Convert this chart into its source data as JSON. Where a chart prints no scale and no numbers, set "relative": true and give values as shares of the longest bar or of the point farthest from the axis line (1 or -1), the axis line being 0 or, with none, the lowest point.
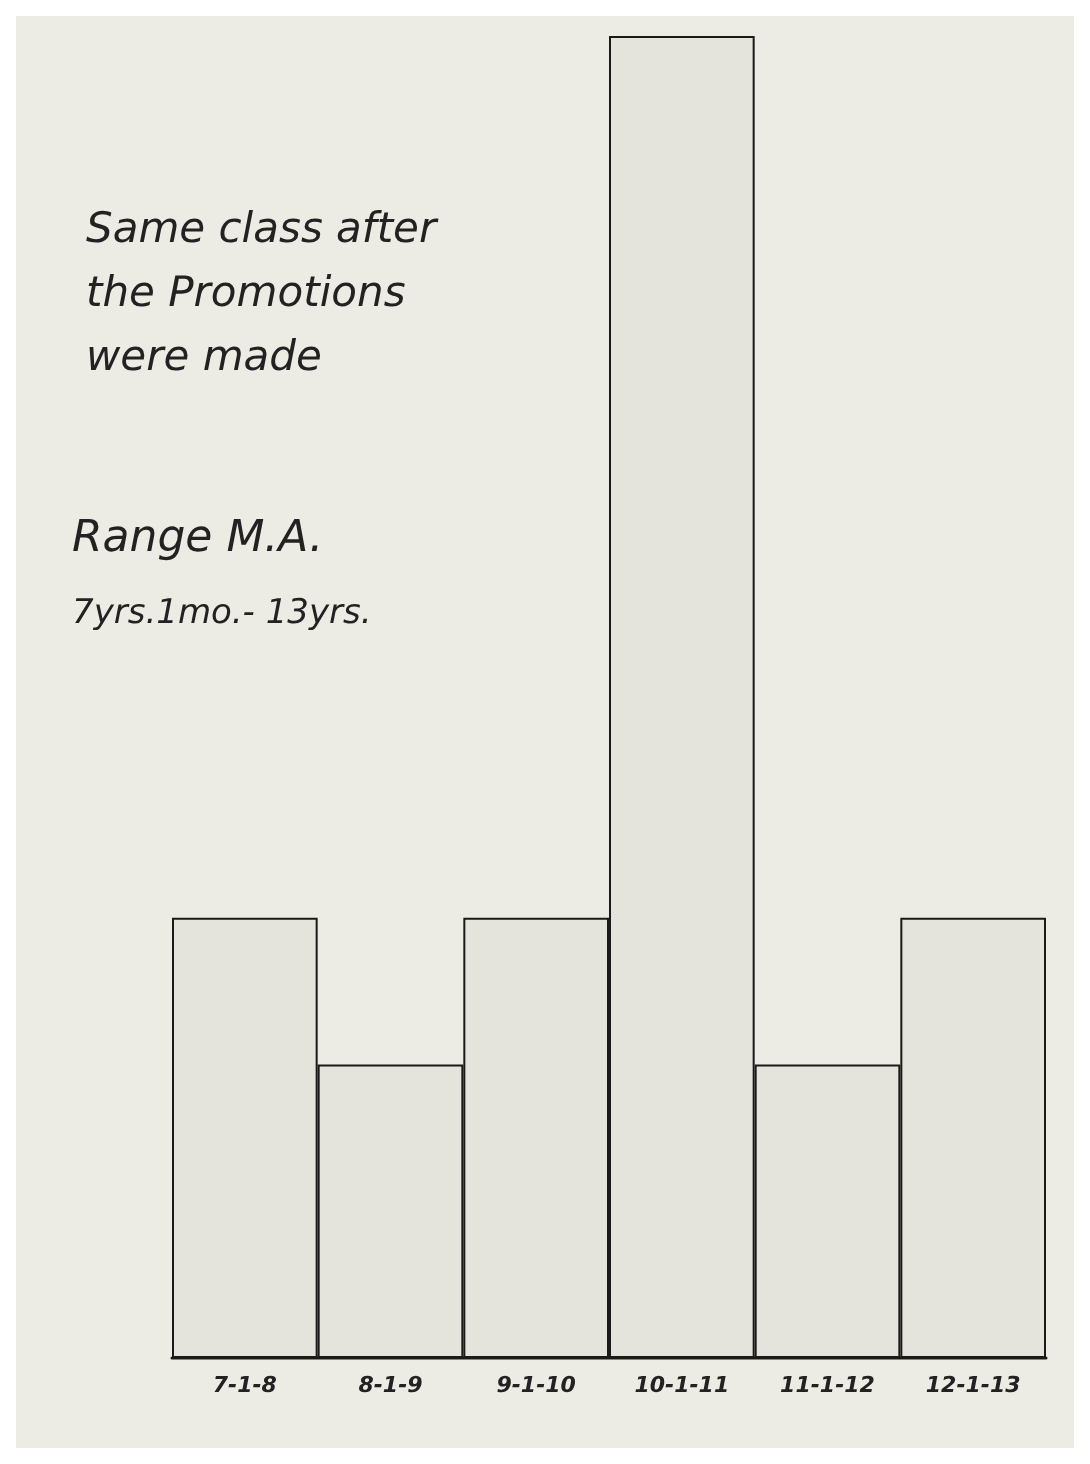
{
  "chart_data": {
    "type": "bar",
    "relative": true,
    "title": "Same class after the Promotions were made",
    "annotations": [
      "Range M.A.",
      "7yrs.1mo.- 13yrs."
    ],
    "categories": [
      "7-1-8",
      "8-1-9",
      "9-1-10",
      "10-1-11",
      "11-1-12",
      "12-1-13"
    ],
    "values": [
      0.333,
      0.222,
      0.333,
      1,
      0.222,
      0.333
    ],
    "color": "#1a1a1a"
  }
}
